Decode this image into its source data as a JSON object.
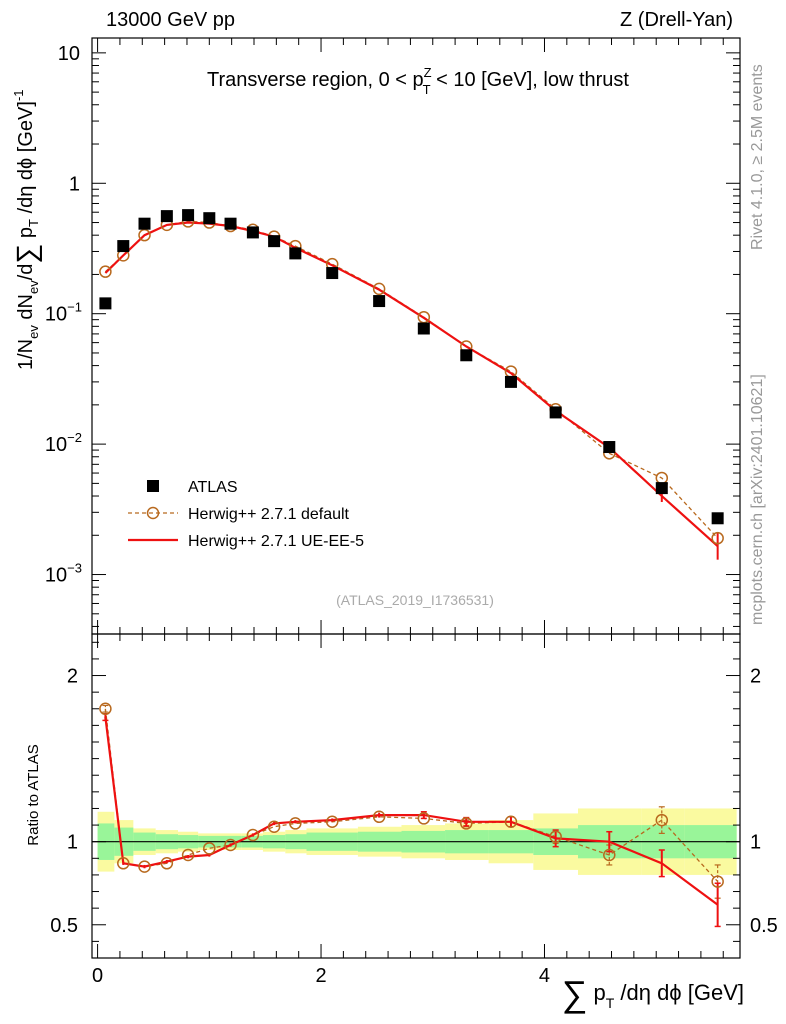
{
  "header": {
    "left": "13000 GeV pp",
    "right": "Z (Drell-Yan)"
  },
  "side_labels": {
    "rivet": "Rivet 4.1.0, ≥ 2.5M events",
    "mcplots": "mcplots.cern.ch [arXiv:2401.10621]"
  },
  "colors": {
    "data": "#000000",
    "default": "#b8691e",
    "ueee5": "#ee1111",
    "band_inner": "#99f599",
    "band_outer": "#fafaa0"
  },
  "chart_data": [
    {
      "type": "scatter",
      "panel": "main",
      "title": "Transverse region, 0 < p",
      "title_sup": "Z",
      "title_sub": "T",
      "title_end": " < 10 [GeV], low thrust",
      "ylabel": "1/N_ev dN_ev/d∑ p_T /dη dϕ [GeV]^-1",
      "yscale": "log",
      "ylim": [
        0.00035,
        13
      ],
      "xlim": [
        -0.05,
        5.75
      ],
      "y_ticks": [
        {
          "value": 10,
          "label": "10"
        },
        {
          "value": 1,
          "label": "1"
        },
        {
          "value": 0.1,
          "label": "10",
          "exp": "−1"
        },
        {
          "value": 0.01,
          "label": "10",
          "exp": "−2"
        },
        {
          "value": 0.001,
          "label": "10",
          "exp": "−3"
        }
      ],
      "watermark": "(ATLAS_2019_I1736531)",
      "legend": [
        {
          "name": "ATLAS",
          "style": "square"
        },
        {
          "name": "Herwig++ 2.7.1 default",
          "style": "dashed-circle"
        },
        {
          "name": "Herwig++ 2.7.1 UE-EE-5",
          "style": "solid-line"
        }
      ],
      "x": [
        0.07,
        0.23,
        0.42,
        0.62,
        0.81,
        1.0,
        1.19,
        1.39,
        1.58,
        1.77,
        2.1,
        2.52,
        2.92,
        3.3,
        3.7,
        4.1,
        4.58,
        5.05,
        5.55
      ],
      "series": [
        {
          "name": "ATLAS",
          "values": [
            0.12,
            0.33,
            0.49,
            0.56,
            0.57,
            0.54,
            0.49,
            0.42,
            0.36,
            0.29,
            0.205,
            0.125,
            0.077,
            0.048,
            0.03,
            0.0175,
            0.0095,
            0.0046,
            0.0027
          ]
        },
        {
          "name": "Herwig++ 2.7.1 default",
          "values": [
            0.21,
            0.28,
            0.4,
            0.48,
            0.51,
            0.5,
            0.47,
            0.44,
            0.39,
            0.33,
            0.24,
            0.155,
            0.094,
            0.056,
            0.036,
            0.0185,
            0.0085,
            0.0055,
            0.0019
          ]
        },
        {
          "name": "Herwig++ 2.7.1 UE-EE-5",
          "values": [
            0.205,
            0.28,
            0.4,
            0.48,
            0.5,
            0.49,
            0.47,
            0.43,
            0.39,
            0.32,
            0.235,
            0.153,
            0.093,
            0.056,
            0.035,
            0.018,
            0.0094,
            0.004,
            0.00165
          ]
        }
      ]
    },
    {
      "type": "line",
      "panel": "ratio",
      "ylabel": "Ratio to ATLAS",
      "ylim": [
        0.3,
        2.25
      ],
      "xlim": [
        -0.05,
        5.75
      ],
      "y_ticks": [
        {
          "value": 2,
          "label": "2"
        },
        {
          "value": 1,
          "label": "1"
        },
        {
          "value": 0.5,
          "label": "0.5"
        }
      ],
      "x_ticks": [
        {
          "value": 0,
          "label": "0"
        },
        {
          "value": 2,
          "label": "2"
        },
        {
          "value": 4,
          "label": "4"
        }
      ],
      "xlabel": "∑ p_T /dη dϕ [GeV]",
      "x": [
        0.07,
        0.23,
        0.42,
        0.62,
        0.81,
        1.0,
        1.19,
        1.39,
        1.58,
        1.77,
        2.1,
        2.52,
        2.92,
        3.3,
        3.7,
        4.1,
        4.58,
        5.05,
        5.55
      ],
      "bin_edges": [
        0,
        0.15,
        0.32,
        0.52,
        0.72,
        0.9,
        1.1,
        1.29,
        1.48,
        1.68,
        1.87,
        2.33,
        2.72,
        3.11,
        3.5,
        3.9,
        4.3,
        4.87,
        5.25,
        5.85
      ],
      "band_inner": [
        0.11,
        0.085,
        0.055,
        0.045,
        0.04,
        0.035,
        0.035,
        0.035,
        0.04,
        0.045,
        0.055,
        0.06,
        0.065,
        0.07,
        0.07,
        0.08,
        0.1,
        0.1,
        0.1
      ],
      "band_outer": [
        0.18,
        0.13,
        0.08,
        0.07,
        0.06,
        0.05,
        0.05,
        0.05,
        0.06,
        0.07,
        0.08,
        0.09,
        0.1,
        0.11,
        0.13,
        0.17,
        0.2,
        0.2,
        0.2
      ],
      "series": [
        {
          "name": "Herwig++ 2.7.1 default",
          "values": [
            1.8,
            0.87,
            0.85,
            0.87,
            0.92,
            0.96,
            0.98,
            1.04,
            1.09,
            1.11,
            1.12,
            1.15,
            1.14,
            1.11,
            1.12,
            1.03,
            0.92,
            1.13,
            0.76
          ],
          "errors": [
            0.02,
            0.01,
            0.01,
            0.01,
            0.01,
            0.01,
            0.01,
            0.01,
            0.01,
            0.01,
            0.01,
            0.01,
            0.015,
            0.02,
            0.03,
            0.04,
            0.06,
            0.08,
            0.1
          ]
        },
        {
          "name": "Herwig++ 2.7.1 UE-EE-5",
          "values": [
            1.75,
            0.87,
            0.85,
            0.88,
            0.91,
            0.92,
            0.98,
            1.04,
            1.11,
            1.12,
            1.13,
            1.16,
            1.16,
            1.12,
            1.12,
            1.02,
            1.0,
            0.87,
            0.62
          ],
          "errors": [
            0.02,
            0.01,
            0.01,
            0.01,
            0.01,
            0.01,
            0.01,
            0.01,
            0.01,
            0.01,
            0.01,
            0.015,
            0.02,
            0.025,
            0.03,
            0.05,
            0.06,
            0.08,
            0.13
          ]
        }
      ]
    }
  ]
}
